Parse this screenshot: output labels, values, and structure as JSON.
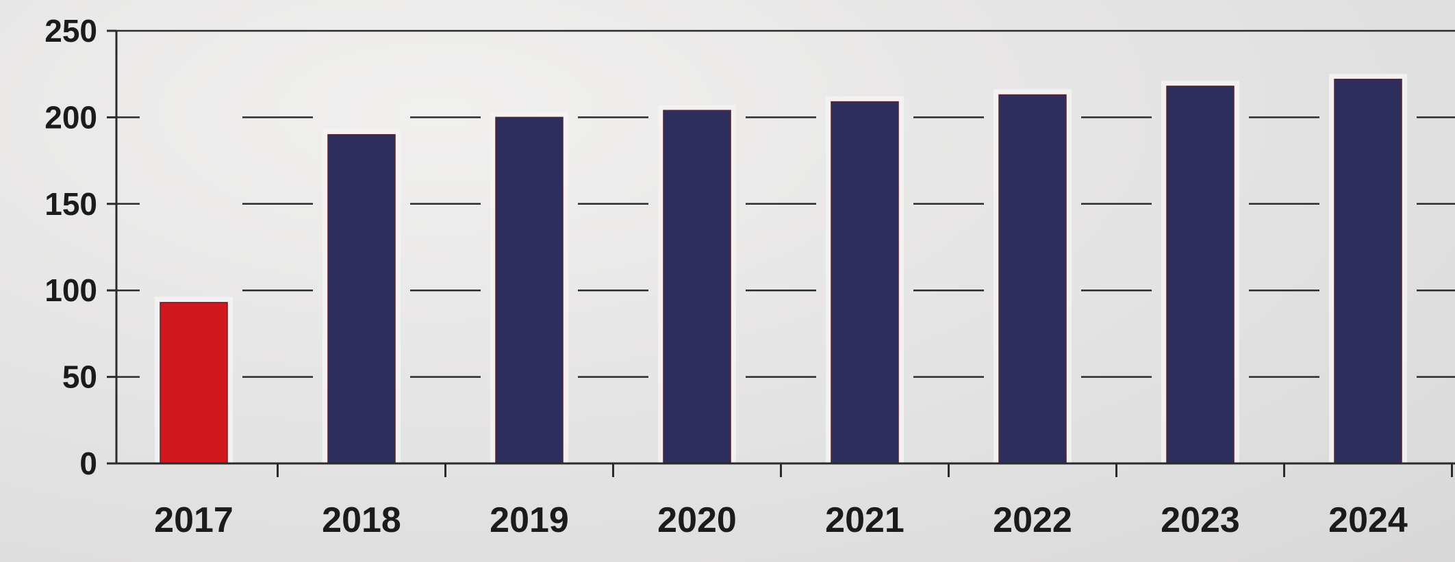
{
  "chart_data": {
    "type": "bar",
    "title": "",
    "xlabel": "",
    "ylabel": "",
    "categories": [
      "2017",
      "2018",
      "2019",
      "2020",
      "2021",
      "2022",
      "2023",
      "2024"
    ],
    "values": [
      93,
      190,
      200,
      204,
      209,
      213,
      218,
      222
    ],
    "ylim": [
      0,
      250
    ],
    "yticks": [
      "0",
      "50",
      "100",
      "150",
      "200",
      "250"
    ],
    "grid": true,
    "legend": "none",
    "colors": {
      "highlight_bar": "#d1181f",
      "bar": "#2d2e5b",
      "bar_edge": "#5a2230",
      "gridline": "#2b2b2b",
      "axis": "#2b2b2b",
      "text": "#1b1b1b"
    },
    "highlight_index": 0
  }
}
